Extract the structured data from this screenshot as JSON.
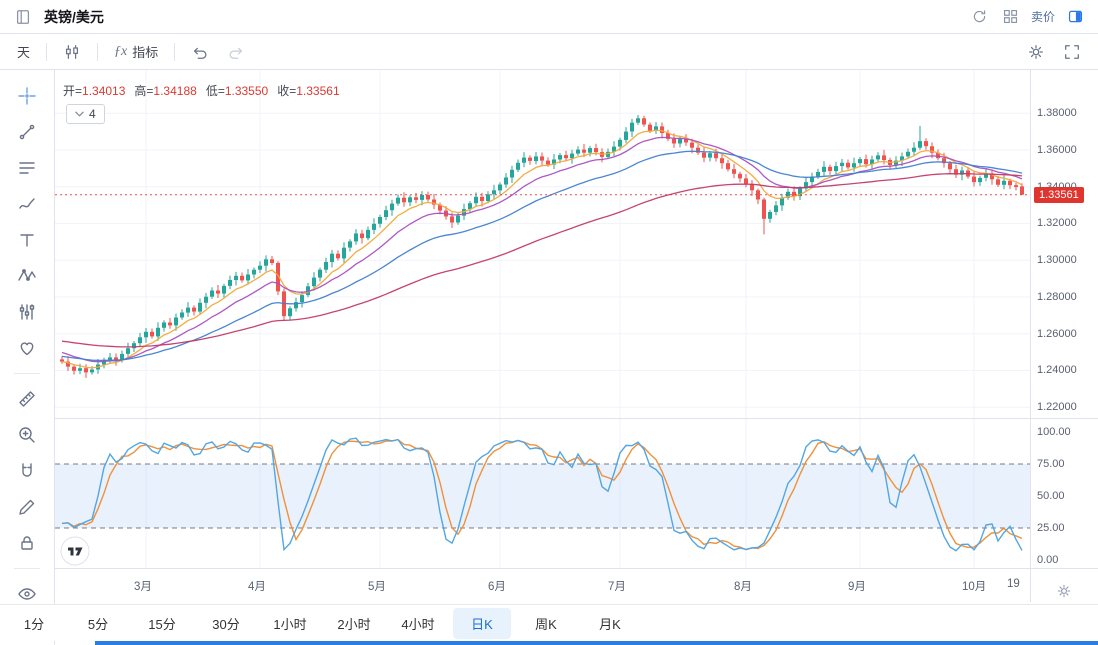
{
  "header": {
    "title": "英镑/美元",
    "sell_label": "卖价"
  },
  "toolbar": {
    "interval_label": "天",
    "fx_label": "ƒx",
    "indicators_label": "指标"
  },
  "legend": {
    "open_label": "开=",
    "open_value": "1.34013",
    "high_label": "高=",
    "high_value": "1.34188",
    "low_label": "低=",
    "low_value": "1.33550",
    "close_label": "收=",
    "close_value": "1.33561",
    "ma_count": "4"
  },
  "price_axis": {
    "last_price": "1.33561"
  },
  "intervals": {
    "items": [
      "1分",
      "5分",
      "15分",
      "30分",
      "1小时",
      "2小时",
      "4小时",
      "日K",
      "周K",
      "月K"
    ],
    "active_index": 7
  },
  "sidebar_tools": [
    "cross-cursor",
    "trend-line",
    "fib-lines",
    "brush",
    "text",
    "xabcd-pattern",
    "prediction",
    "emoji-heart",
    "measure-ruler",
    "zoom-in",
    "magnet",
    "draw-pencil",
    "lock-all",
    "hide-all"
  ],
  "chart_data": {
    "type": "candlestick",
    "symbol": "英镑/美元",
    "interval": "日K",
    "price_scale": {
      "top": 1.4035,
      "bottom": 1.2141
    },
    "price_ticks": [
      {
        "v": 1.38,
        "label": "1.38000"
      },
      {
        "v": 1.36,
        "label": "1.36000"
      },
      {
        "v": 1.34,
        "label": "1.34000"
      },
      {
        "v": 1.32,
        "label": "1.32000"
      },
      {
        "v": 1.3,
        "label": "1.30000"
      },
      {
        "v": 1.28,
        "label": "1.28000"
      },
      {
        "v": 1.26,
        "label": "1.26000"
      },
      {
        "v": 1.24,
        "label": "1.24000"
      },
      {
        "v": 1.22,
        "label": "1.22000"
      }
    ],
    "month_ticks": [
      {
        "i": 14,
        "label": "3月"
      },
      {
        "i": 33,
        "label": "4月"
      },
      {
        "i": 53,
        "label": "5月"
      },
      {
        "i": 73,
        "label": "6月"
      },
      {
        "i": 93,
        "label": "7月"
      },
      {
        "i": 114,
        "label": "8月"
      },
      {
        "i": 133,
        "label": "9月"
      },
      {
        "i": 152,
        "label": "10月"
      }
    ],
    "partial_x_label": "19",
    "last_price": 1.33561,
    "colors": {
      "up": "#26a69a",
      "down": "#ef5350",
      "grid": "#f0f3fa",
      "last_line": "#e0342f"
    },
    "ma": [
      {
        "period": 7,
        "color": "#f2a93b",
        "init": null
      },
      {
        "period": 14,
        "color": "#a94fc0",
        "init": 1.2505
      },
      {
        "period": 30,
        "color": "#4080d0",
        "init": 1.2478
      },
      {
        "period": 70,
        "color": "#c23a69",
        "init": 1.2562
      }
    ],
    "oscillator": {
      "type": "stochastic",
      "lookback": 9,
      "k_smooth": 2,
      "d_smooth": 4,
      "k_color": "#53a6e3",
      "d_color": "#ef913c",
      "band": [
        25,
        75
      ],
      "band_fill": "rgba(125,180,240,0.18)",
      "dash_color": "#565b66",
      "levels": [
        {
          "v": 100,
          "label": "100.00"
        },
        {
          "v": 75,
          "label": "75.00"
        },
        {
          "v": 50,
          "label": "50.00"
        },
        {
          "v": 25,
          "label": "25.00"
        },
        {
          "v": 0,
          "label": "0.00"
        }
      ]
    },
    "candles": [
      [
        1.246,
        1.2478,
        1.2436,
        1.2448
      ],
      [
        1.2448,
        1.2478,
        1.2397,
        1.2421
      ],
      [
        1.2421,
        1.2433,
        1.2377,
        1.2398
      ],
      [
        1.2398,
        1.2436,
        1.238,
        1.2412
      ],
      [
        1.2412,
        1.2433,
        1.2359,
        1.2389
      ],
      [
        1.2389,
        1.2423,
        1.2377,
        1.2405
      ],
      [
        1.2405,
        1.2462,
        1.2381,
        1.2432
      ],
      [
        1.2432,
        1.247,
        1.2411,
        1.2458
      ],
      [
        1.2458,
        1.2495,
        1.244,
        1.2471
      ],
      [
        1.2471,
        1.2492,
        1.2425,
        1.2455
      ],
      [
        1.2455,
        1.2508,
        1.2443,
        1.249
      ],
      [
        1.249,
        1.2551,
        1.2466,
        1.2521
      ],
      [
        1.2521,
        1.256,
        1.25,
        1.2548
      ],
      [
        1.2548,
        1.2604,
        1.253,
        1.258
      ],
      [
        1.258,
        1.2631,
        1.255,
        1.261
      ],
      [
        1.261,
        1.2628,
        1.2573,
        1.2585
      ],
      [
        1.2585,
        1.2662,
        1.2561,
        1.2632
      ],
      [
        1.2632,
        1.2673,
        1.2611,
        1.2661
      ],
      [
        1.2661,
        1.2685,
        1.2627,
        1.2645
      ],
      [
        1.2645,
        1.2709,
        1.2615,
        1.2688
      ],
      [
        1.2688,
        1.2733,
        1.2676,
        1.2715
      ],
      [
        1.2715,
        1.2772,
        1.2691,
        1.2742
      ],
      [
        1.2742,
        1.2754,
        1.2699,
        1.272
      ],
      [
        1.272,
        1.2792,
        1.2702,
        1.2768
      ],
      [
        1.2768,
        1.2822,
        1.2738,
        1.2801
      ],
      [
        1.2801,
        1.2853,
        1.2789,
        1.2835
      ],
      [
        1.2835,
        1.2865,
        1.2794,
        1.2818
      ],
      [
        1.2818,
        1.2872,
        1.2797,
        1.286
      ],
      [
        1.286,
        1.2916,
        1.2842,
        1.2892
      ],
      [
        1.2892,
        1.2936,
        1.2862,
        1.2915
      ],
      [
        1.2915,
        1.2933,
        1.2878,
        1.289
      ],
      [
        1.289,
        1.2952,
        1.2866,
        1.2922
      ],
      [
        1.2922,
        1.296,
        1.2901,
        1.2948
      ],
      [
        1.2948,
        1.2994,
        1.293,
        1.297
      ],
      [
        1.297,
        1.3026,
        1.294,
        1.3005
      ],
      [
        1.3005,
        1.3023,
        1.2973,
        1.2985
      ],
      [
        1.2985,
        1.2995,
        1.281,
        1.283
      ],
      [
        1.283,
        1.2845,
        1.267,
        1.2695
      ],
      [
        1.2695,
        1.275,
        1.2674,
        1.2738
      ],
      [
        1.2738,
        1.2796,
        1.272,
        1.2772
      ],
      [
        1.2772,
        1.2831,
        1.2742,
        1.281
      ],
      [
        1.281,
        1.2876,
        1.2798,
        1.2858
      ],
      [
        1.2858,
        1.2935,
        1.2834,
        1.2905
      ],
      [
        1.2905,
        1.296,
        1.2884,
        1.2948
      ],
      [
        1.2948,
        1.3014,
        1.293,
        1.299
      ],
      [
        1.299,
        1.3056,
        1.296,
        1.3035
      ],
      [
        1.3035,
        1.3053,
        1.2998,
        1.301
      ],
      [
        1.301,
        1.3098,
        1.2986,
        1.3068
      ],
      [
        1.3068,
        1.3114,
        1.3047,
        1.3102
      ],
      [
        1.3102,
        1.3169,
        1.3084,
        1.3145
      ],
      [
        1.3145,
        1.3166,
        1.309,
        1.312
      ],
      [
        1.312,
        1.3183,
        1.3108,
        1.3165
      ],
      [
        1.3165,
        1.3228,
        1.3141,
        1.3198
      ],
      [
        1.3198,
        1.3247,
        1.3177,
        1.3235
      ],
      [
        1.3235,
        1.3296,
        1.3217,
        1.3272
      ],
      [
        1.3272,
        1.3329,
        1.3242,
        1.3308
      ],
      [
        1.3308,
        1.3358,
        1.3296,
        1.334
      ],
      [
        1.334,
        1.337,
        1.3291,
        1.3315
      ],
      [
        1.3315,
        1.3354,
        1.3294,
        1.3342
      ],
      [
        1.3342,
        1.3366,
        1.331,
        1.3328
      ],
      [
        1.3328,
        1.3376,
        1.3298,
        1.3355
      ],
      [
        1.3355,
        1.3373,
        1.3318,
        1.333
      ],
      [
        1.333,
        1.336,
        1.3278,
        1.3302
      ],
      [
        1.3302,
        1.3314,
        1.3249,
        1.327
      ],
      [
        1.327,
        1.3294,
        1.322,
        1.3238
      ],
      [
        1.3238,
        1.3259,
        1.3175,
        1.3205
      ],
      [
        1.3205,
        1.326,
        1.3193,
        1.3242
      ],
      [
        1.3242,
        1.3308,
        1.3218,
        1.3278
      ],
      [
        1.3278,
        1.3322,
        1.3257,
        1.331
      ],
      [
        1.331,
        1.3369,
        1.3292,
        1.3345
      ],
      [
        1.3345,
        1.3366,
        1.3292,
        1.3322
      ],
      [
        1.3322,
        1.3376,
        1.331,
        1.3358
      ],
      [
        1.3358,
        1.341,
        1.3334,
        1.338
      ],
      [
        1.338,
        1.3424,
        1.3359,
        1.3412
      ],
      [
        1.3412,
        1.3474,
        1.3394,
        1.345
      ],
      [
        1.345,
        1.3513,
        1.342,
        1.3492
      ],
      [
        1.3492,
        1.3548,
        1.348,
        1.353
      ],
      [
        1.353,
        1.3588,
        1.3506,
        1.3558
      ],
      [
        1.3558,
        1.357,
        1.3519,
        1.354
      ],
      [
        1.354,
        1.3589,
        1.3522,
        1.3565
      ],
      [
        1.3565,
        1.3586,
        1.3512,
        1.3542
      ],
      [
        1.3542,
        1.356,
        1.3508,
        1.352
      ],
      [
        1.352,
        1.3578,
        1.3496,
        1.3548
      ],
      [
        1.3548,
        1.3584,
        1.3527,
        1.3572
      ],
      [
        1.3572,
        1.3596,
        1.3537,
        1.3555
      ],
      [
        1.3555,
        1.3601,
        1.3525,
        1.358
      ],
      [
        1.358,
        1.362,
        1.3568,
        1.3602
      ],
      [
        1.3602,
        1.3632,
        1.3561,
        1.3585
      ],
      [
        1.3585,
        1.3622,
        1.3564,
        1.361
      ],
      [
        1.361,
        1.3634,
        1.357,
        1.3588
      ],
      [
        1.3588,
        1.3609,
        1.3532,
        1.3562
      ],
      [
        1.3562,
        1.3608,
        1.355,
        1.359
      ],
      [
        1.359,
        1.3648,
        1.3566,
        1.3618
      ],
      [
        1.3618,
        1.3667,
        1.3597,
        1.3655
      ],
      [
        1.3655,
        1.3724,
        1.3637,
        1.37
      ],
      [
        1.37,
        1.3769,
        1.367,
        1.3748
      ],
      [
        1.3748,
        1.379,
        1.3736,
        1.3772
      ],
      [
        1.3772,
        1.3786,
        1.3726,
        1.3738
      ],
      [
        1.3738,
        1.375,
        1.3692,
        1.3705
      ],
      [
        1.3705,
        1.3752,
        1.3687,
        1.3728
      ],
      [
        1.3728,
        1.3749,
        1.3662,
        1.3692
      ],
      [
        1.3692,
        1.371,
        1.3648,
        1.366
      ],
      [
        1.366,
        1.369,
        1.3611,
        1.3635
      ],
      [
        1.3635,
        1.3674,
        1.3614,
        1.3662
      ],
      [
        1.3662,
        1.3686,
        1.3622,
        1.364
      ],
      [
        1.364,
        1.3661,
        1.3582,
        1.3612
      ],
      [
        1.3612,
        1.363,
        1.3573,
        1.3585
      ],
      [
        1.3585,
        1.3615,
        1.3534,
        1.3558
      ],
      [
        1.3558,
        1.3594,
        1.3537,
        1.3582
      ],
      [
        1.3582,
        1.3606,
        1.3537,
        1.3555
      ],
      [
        1.3555,
        1.3576,
        1.3498,
        1.3528
      ],
      [
        1.3528,
        1.3546,
        1.3483,
        1.3495
      ],
      [
        1.3495,
        1.3525,
        1.3446,
        1.347
      ],
      [
        1.347,
        1.3482,
        1.3424,
        1.3445
      ],
      [
        1.3445,
        1.3469,
        1.3397,
        1.3415
      ],
      [
        1.3415,
        1.3436,
        1.335,
        1.338
      ],
      [
        1.338,
        1.339,
        1.3305,
        1.333
      ],
      [
        1.333,
        1.334,
        1.314,
        1.3225
      ],
      [
        1.3225,
        1.3274,
        1.3204,
        1.3262
      ],
      [
        1.3262,
        1.3322,
        1.3244,
        1.3298
      ],
      [
        1.3298,
        1.3361,
        1.3268,
        1.334
      ],
      [
        1.334,
        1.339,
        1.3328,
        1.3372
      ],
      [
        1.3372,
        1.3402,
        1.3324,
        1.3348
      ],
      [
        1.3348,
        1.3402,
        1.3327,
        1.339
      ],
      [
        1.339,
        1.3449,
        1.3372,
        1.3425
      ],
      [
        1.3425,
        1.3476,
        1.3395,
        1.3455
      ],
      [
        1.3455,
        1.3498,
        1.3443,
        1.348
      ],
      [
        1.348,
        1.3538,
        1.3456,
        1.3508
      ],
      [
        1.3508,
        1.352,
        1.3464,
        1.3485
      ],
      [
        1.3485,
        1.3536,
        1.3467,
        1.3512
      ],
      [
        1.3512,
        1.3551,
        1.3482,
        1.353
      ],
      [
        1.353,
        1.3548,
        1.3493,
        1.3505
      ],
      [
        1.3505,
        1.3558,
        1.3481,
        1.3528
      ],
      [
        1.3528,
        1.3562,
        1.3507,
        1.355
      ],
      [
        1.355,
        1.3574,
        1.3504,
        1.3522
      ],
      [
        1.3522,
        1.3569,
        1.3492,
        1.3548
      ],
      [
        1.3548,
        1.3588,
        1.3536,
        1.357
      ],
      [
        1.357,
        1.36,
        1.3521,
        1.3545
      ],
      [
        1.3545,
        1.3557,
        1.3497,
        1.3518
      ],
      [
        1.3518,
        1.3566,
        1.35,
        1.3542
      ],
      [
        1.3542,
        1.3586,
        1.3512,
        1.3565
      ],
      [
        1.3565,
        1.3608,
        1.3553,
        1.359
      ],
      [
        1.359,
        1.3642,
        1.3566,
        1.3612
      ],
      [
        1.3612,
        1.373,
        1.36,
        1.3648
      ],
      [
        1.3648,
        1.3664,
        1.3601,
        1.362
      ],
      [
        1.362,
        1.3641,
        1.3555,
        1.3585
      ],
      [
        1.3585,
        1.3603,
        1.3543,
        1.3555
      ],
      [
        1.3555,
        1.3585,
        1.3504,
        1.3528
      ],
      [
        1.3528,
        1.354,
        1.3474,
        1.3495
      ],
      [
        1.3495,
        1.3519,
        1.3447,
        1.3465
      ],
      [
        1.3465,
        1.3509,
        1.3435,
        1.3488
      ],
      [
        1.3488,
        1.3506,
        1.3443,
        1.3455
      ],
      [
        1.3455,
        1.3485,
        1.3401,
        1.3425
      ],
      [
        1.3425,
        1.346,
        1.3404,
        1.3448
      ],
      [
        1.3448,
        1.3496,
        1.343,
        1.3472
      ],
      [
        1.3472,
        1.3493,
        1.341,
        1.344
      ],
      [
        1.344,
        1.3458,
        1.3398,
        1.341
      ],
      [
        1.341,
        1.3462,
        1.3386,
        1.3432
      ],
      [
        1.3432,
        1.3444,
        1.3387,
        1.3408
      ],
      [
        1.3408,
        1.3422,
        1.338,
        1.3398
      ],
      [
        1.34013,
        1.34188,
        1.3355,
        1.33561
      ]
    ]
  }
}
